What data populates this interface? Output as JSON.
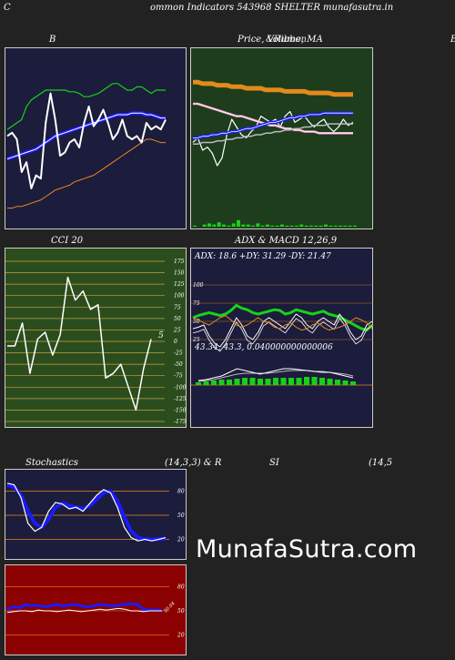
{
  "header": {
    "left": "C",
    "center": "ommon  Indicators 543968 SHELTER munafasutra.in"
  },
  "titles": {
    "bb": "B",
    "price": "Price,  Volume,  MA",
    "price_overlay": "&Ribbon",
    "edge_right": "B",
    "cci": "CCI 20",
    "adx": "ADX  & MACD 12,26,9",
    "stoch": "Stochastics",
    "stoch_params": "(14,3,3) & R",
    "si": "SI",
    "rsi_params": "(14,5"
  },
  "watermark": "MunafaSutra.com",
  "colors": {
    "bg": "#222222",
    "navy_panel": "#1c1c3c",
    "green_panel": "#1d3d1d",
    "cci_panel": "#2b4d1e",
    "red_panel": "#8b0000",
    "ma_blue": "#1a1aff",
    "orange": "#e38a1d",
    "green_line": "#16d216",
    "white": "#ffffff"
  },
  "chart_data": [
    {
      "type": "line",
      "name": "bollinger",
      "title": "B",
      "ylim": [
        0,
        100
      ],
      "series": [
        {
          "name": "price",
          "color": "#ffffff",
          "values": [
            52,
            54,
            50,
            30,
            36,
            20,
            28,
            26,
            60,
            78,
            62,
            40,
            42,
            48,
            50,
            45,
            60,
            70,
            58,
            62,
            68,
            60,
            50,
            54,
            62,
            52,
            50,
            52,
            48,
            60,
            56,
            58,
            56,
            62
          ]
        },
        {
          "name": "upper",
          "color": "#16d216",
          "values": [
            56,
            58,
            60,
            62,
            70,
            74,
            76,
            78,
            80,
            80,
            80,
            80,
            80,
            79,
            79,
            78,
            76,
            76,
            77,
            78,
            80,
            82,
            84,
            84,
            82,
            80,
            80,
            82,
            82,
            80,
            78,
            80,
            80,
            80
          ]
        },
        {
          "name": "middle",
          "color": "#1a1aff",
          "values": [
            38,
            39,
            40,
            41,
            42,
            43,
            44,
            46,
            48,
            50,
            52,
            53,
            54,
            55,
            56,
            57,
            58,
            59,
            60,
            61,
            62,
            63,
            64,
            65,
            65,
            65,
            66,
            66,
            66,
            65,
            65,
            64,
            63,
            63
          ]
        },
        {
          "name": "lower",
          "color": "#e38a1d",
          "values": [
            8,
            8,
            9,
            9,
            10,
            11,
            12,
            13,
            15,
            17,
            19,
            20,
            21,
            22,
            24,
            25,
            26,
            27,
            28,
            30,
            32,
            34,
            36,
            38,
            40,
            42,
            44,
            46,
            48,
            50,
            50,
            49,
            48,
            48
          ]
        }
      ]
    },
    {
      "type": "line",
      "name": "price_ma",
      "title": "Price,  Volume,  MA",
      "ylim": [
        0,
        100
      ],
      "series": [
        {
          "name": "price",
          "color": "#ffffff",
          "values": [
            45,
            48,
            40,
            42,
            38,
            30,
            35,
            50,
            60,
            55,
            50,
            48,
            52,
            55,
            62,
            60,
            58,
            60,
            55,
            62,
            65,
            58,
            60,
            62,
            58,
            55,
            58,
            60,
            55,
            52,
            55,
            60,
            56,
            58
          ]
        },
        {
          "name": "ma_orange",
          "color": "#e38a1d",
          "values": [
            84,
            84,
            83,
            83,
            83,
            82,
            82,
            82,
            81,
            81,
            81,
            80,
            80,
            80,
            80,
            79,
            79,
            79,
            79,
            78,
            78,
            78,
            78,
            78,
            77,
            77,
            77,
            77,
            77,
            76,
            76,
            76,
            76,
            76
          ]
        },
        {
          "name": "ma_pink",
          "color": "#f0a0d0",
          "values": [
            70,
            70,
            69,
            68,
            67,
            66,
            65,
            64,
            63,
            62,
            62,
            61,
            60,
            59,
            58,
            57,
            56,
            56,
            55,
            54,
            54,
            53,
            53,
            52,
            52,
            52,
            51,
            51,
            51,
            51,
            51,
            51,
            51,
            51
          ]
        },
        {
          "name": "ma_blue",
          "color": "#1a1aff",
          "values": [
            48,
            48,
            49,
            49,
            50,
            50,
            51,
            51,
            52,
            52,
            53,
            54,
            54,
            55,
            56,
            57,
            58,
            58,
            59,
            60,
            61,
            61,
            62,
            62,
            63,
            63,
            63,
            64,
            64,
            64,
            64,
            64,
            64,
            64
          ]
        },
        {
          "name": "ma_grey",
          "color": "#bbbbbb",
          "values": [
            44,
            44,
            45,
            45,
            45,
            46,
            46,
            47,
            47,
            48,
            48,
            49,
            49,
            50,
            50,
            51,
            51,
            52,
            52,
            53,
            53,
            54,
            54,
            55,
            55,
            56,
            56,
            56,
            57,
            57,
            57,
            57,
            57,
            57
          ]
        }
      ],
      "volume": [
        1,
        0,
        2,
        3,
        2,
        4,
        2,
        1,
        3,
        6,
        2,
        2,
        1,
        3,
        1,
        2,
        1,
        1,
        2,
        1,
        1,
        1,
        2,
        1,
        1,
        1,
        1,
        2,
        1,
        1,
        1,
        1,
        1,
        1
      ]
    },
    {
      "type": "line",
      "name": "cci",
      "title": "CCI 20",
      "ylim": [
        -175,
        175
      ],
      "yticks": [
        175,
        150,
        125,
        100,
        75,
        50,
        25,
        0,
        -25,
        -50,
        -75,
        -100,
        -125,
        -150,
        -175
      ],
      "last_label": "5",
      "series": [
        {
          "name": "cci",
          "color": "#ffffff",
          "values": [
            -10,
            -10,
            40,
            -70,
            5,
            20,
            -30,
            15,
            140,
            90,
            110,
            70,
            80,
            -80,
            -70,
            -50,
            -100,
            -150,
            -60,
            5
          ]
        }
      ]
    },
    {
      "type": "line",
      "name": "adx",
      "title": "ADX  & MACD 12,26,9",
      "readout": "ADX: 18.6   +DY: 31.29 -DY: 21.47",
      "yticks": [
        100,
        75,
        50,
        25
      ],
      "series": [
        {
          "name": "adx",
          "color": "#16d216",
          "values": [
            55,
            58,
            60,
            62,
            60,
            58,
            60,
            65,
            72,
            68,
            66,
            62,
            60,
            62,
            64,
            66,
            65,
            60,
            62,
            66,
            64,
            62,
            60,
            62,
            64,
            60,
            58,
            56,
            52,
            48,
            44,
            40,
            38,
            45
          ]
        },
        {
          "name": "plus_di",
          "color": "#ffffff",
          "values": [
            40,
            42,
            45,
            30,
            20,
            15,
            25,
            40,
            55,
            45,
            30,
            25,
            35,
            50,
            55,
            50,
            45,
            40,
            50,
            60,
            55,
            45,
            40,
            50,
            55,
            50,
            45,
            60,
            50,
            35,
            25,
            30,
            45,
            50
          ]
        },
        {
          "name": "minus_di",
          "color": "#e38a1d",
          "values": [
            55,
            52,
            48,
            45,
            50,
            55,
            58,
            52,
            45,
            42,
            45,
            50,
            55,
            50,
            48,
            42,
            40,
            45,
            48,
            42,
            38,
            40,
            45,
            48,
            42,
            38,
            40,
            42,
            45,
            50,
            55,
            52,
            48,
            40
          ]
        }
      ]
    },
    {
      "type": "bar",
      "name": "macd",
      "readout": "43.34,  43.3,  0.040000000000006",
      "series": [
        {
          "name": "macd",
          "color": "#ffffff",
          "values": [
            5,
            6,
            8,
            10,
            14,
            18,
            16,
            14,
            12,
            14,
            16,
            18,
            18,
            17,
            16,
            15,
            14,
            14,
            12,
            10,
            8
          ]
        },
        {
          "name": "signal",
          "color": "#bbbbbb",
          "values": [
            4,
            5,
            6,
            8,
            10,
            12,
            13,
            13,
            13,
            13,
            14,
            15,
            16,
            16,
            16,
            15,
            15,
            14,
            13,
            12,
            10
          ]
        },
        {
          "name": "hist",
          "color": "#16d216",
          "values": [
            3,
            4,
            5,
            6,
            6,
            7,
            8,
            8,
            7,
            7,
            8,
            8,
            8,
            8,
            9,
            9,
            8,
            7,
            6,
            5,
            4
          ]
        }
      ]
    },
    {
      "type": "line",
      "name": "stochastics",
      "title": "Stochastics",
      "ylim": [
        0,
        100
      ],
      "yticks": [
        80,
        50,
        20
      ],
      "series": [
        {
          "name": "k",
          "color": "#ffffff",
          "values": [
            90,
            88,
            72,
            40,
            30,
            35,
            55,
            66,
            64,
            58,
            60,
            55,
            65,
            75,
            82,
            78,
            60,
            35,
            22,
            18,
            20,
            18,
            20,
            22
          ]
        },
        {
          "name": "d",
          "color": "#1a1aff",
          "values": [
            88,
            85,
            75,
            55,
            40,
            35,
            45,
            60,
            65,
            62,
            60,
            58,
            62,
            70,
            78,
            80,
            68,
            48,
            30,
            22,
            20,
            20,
            20,
            21
          ]
        }
      ]
    },
    {
      "type": "line",
      "name": "rsi",
      "ylim": [
        0,
        100
      ],
      "yticks": [
        80,
        50,
        20
      ],
      "last_label": "50.04",
      "series": [
        {
          "name": "rsi",
          "color": "#1a1aff",
          "values": [
            52,
            55,
            54,
            58,
            56,
            57,
            55,
            56,
            58,
            56,
            57,
            58,
            56,
            55,
            56,
            58,
            57,
            56,
            57,
            58,
            59,
            58,
            52,
            51,
            51,
            50
          ]
        },
        {
          "name": "price",
          "color": "#ffffff",
          "values": [
            48,
            49,
            50,
            50,
            49,
            51,
            50,
            50,
            49,
            50,
            51,
            50,
            49,
            50,
            51,
            52,
            51,
            52,
            53,
            52,
            50,
            50,
            49,
            50,
            50,
            50
          ]
        }
      ]
    }
  ]
}
